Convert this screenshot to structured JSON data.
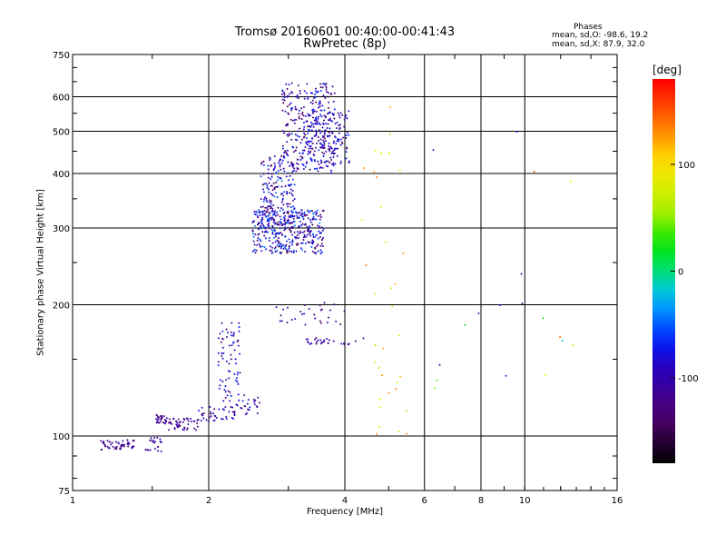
{
  "header": {
    "title_line1": "Tromsø 20160601 00:40:00-00:41:43",
    "title_line2": "RwPretec (8p)",
    "phases_title": "Phases",
    "phases_o": "mean, sd,O: -98.6, 19.2",
    "phases_x": "mean, sd,X:  87.9, 32.0"
  },
  "chart_data": {
    "type": "scatter",
    "title": "Tromsø 20160601 00:40:00-00:41:43",
    "subtitle": "RwPretec (8p)",
    "xlabel": "Frequency [MHz]",
    "ylabel": "Stationary phase Virtual Height [km]",
    "x_scale": "log",
    "y_scale": "log",
    "xlim": [
      1,
      16
    ],
    "ylim": [
      75,
      750
    ],
    "x_ticks": [
      1,
      2,
      4,
      6,
      8,
      10,
      16
    ],
    "y_ticks": [
      75,
      100,
      200,
      300,
      400,
      500,
      600,
      750
    ],
    "x_grid": [
      2,
      4,
      6,
      8,
      10
    ],
    "y_grid": [
      100,
      200,
      300,
      400,
      500,
      600
    ],
    "colorbar": {
      "label": "[deg]",
      "range": [
        -180,
        180
      ],
      "ticks": [
        -100,
        0,
        100
      ],
      "colormap": "rainbow (black-purple-blue-cyan-green-yellow-red)"
    },
    "clusters": [
      {
        "x_range": [
          1.15,
          1.38
        ],
        "y_range": [
          93,
          98
        ],
        "n": 50,
        "phase_range": [
          -140,
          -90
        ]
      },
      {
        "x_range": [
          1.45,
          1.58
        ],
        "y_range": [
          92,
          100
        ],
        "n": 22,
        "phase_range": [
          -130,
          -80
        ]
      },
      {
        "x_range": [
          1.53,
          1.62
        ],
        "y_range": [
          107,
          112
        ],
        "n": 26,
        "phase_range": [
          -140,
          -90
        ]
      },
      {
        "x_range": [
          1.6,
          1.9
        ],
        "y_range": [
          103,
          110
        ],
        "n": 50,
        "phase_range": [
          -140,
          -90
        ]
      },
      {
        "x_range": [
          1.9,
          2.3
        ],
        "y_range": [
          108,
          117
        ],
        "n": 40,
        "phase_range": [
          -130,
          -70
        ]
      },
      {
        "x_range": [
          2.1,
          2.35
        ],
        "y_range": [
          120,
          185
        ],
        "n": 70,
        "phase_range": [
          -130,
          -60
        ]
      },
      {
        "x_range": [
          2.3,
          2.6
        ],
        "y_range": [
          112,
          125
        ],
        "n": 25,
        "phase_range": [
          -130,
          -70
        ]
      },
      {
        "x_range": [
          2.5,
          3.6
        ],
        "y_range": [
          262,
          330
        ],
        "n": 360,
        "phase_range": [
          -150,
          -40
        ]
      },
      {
        "x_range": [
          2.6,
          3.1
        ],
        "y_range": [
          300,
          440
        ],
        "n": 200,
        "phase_range": [
          -150,
          -40
        ]
      },
      {
        "x_range": [
          2.9,
          3.8
        ],
        "y_range": [
          400,
          650
        ],
        "n": 280,
        "phase_range": [
          -150,
          -60
        ]
      },
      {
        "x_range": [
          3.2,
          4.1
        ],
        "y_range": [
          420,
          560
        ],
        "n": 140,
        "phase_range": [
          -130,
          -60
        ]
      },
      {
        "x_range": [
          2.8,
          4.0
        ],
        "y_range": [
          180,
          205
        ],
        "n": 30,
        "phase_range": [
          -140,
          -80
        ]
      },
      {
        "x_range": [
          3.2,
          4.4
        ],
        "y_range": [
          162,
          168
        ],
        "n": 30,
        "phase_range": [
          -130,
          -80
        ]
      },
      {
        "x_range": [
          4.2,
          5.6
        ],
        "y_range": [
          100,
          600
        ],
        "n": 35,
        "phase_range": [
          40,
          140
        ]
      },
      {
        "x_range": [
          5.8,
          13.0
        ],
        "y_range": [
          120,
          500
        ],
        "n": 18,
        "phase_range": [
          -140,
          160
        ]
      }
    ]
  }
}
